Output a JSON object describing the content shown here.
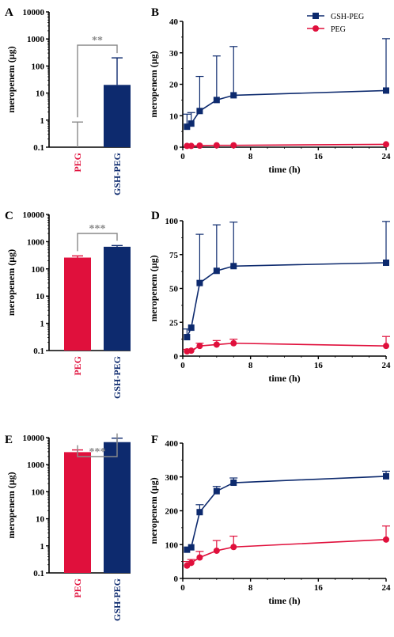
{
  "colors": {
    "PEG": "#e0103c",
    "GSH-PEG": "#0d2a6e",
    "bracket": "#8a8a8a",
    "axis": "#000000"
  },
  "chart_data": [
    {
      "panel": "A",
      "type": "bar",
      "scale": "log",
      "ylabel": "meropenem (µg)",
      "ylim": [
        0.1,
        10000
      ],
      "yticks": [
        "10000",
        "1000",
        "100",
        "10",
        "1",
        "0.1"
      ],
      "categories": [
        "PEG",
        "GSH-PEG"
      ],
      "values": [
        null,
        20
      ],
      "error_upper": [
        0.85,
        200
      ],
      "significance": "**"
    },
    {
      "panel": "B",
      "type": "line",
      "xlabel": "time (h)",
      "ylabel": "meropenem (µg)",
      "xlim": [
        0,
        24
      ],
      "xticks": [
        0,
        8,
        16,
        24
      ],
      "ylim": [
        0,
        40
      ],
      "yticks": [
        0,
        10,
        20,
        30,
        40
      ],
      "legend": "top-right",
      "series": [
        {
          "name": "GSH-PEG",
          "marker": "square",
          "x": [
            0.5,
            1,
            2,
            4,
            6,
            24
          ],
          "y": [
            6.5,
            7.5,
            11.5,
            15,
            16.5,
            18
          ],
          "err": [
            4,
            3.5,
            11,
            14,
            15.5,
            16.5
          ]
        },
        {
          "name": "PEG",
          "marker": "circle",
          "x": [
            0.5,
            1,
            2,
            4,
            6,
            24
          ],
          "y": [
            0.4,
            0.4,
            0.5,
            0.6,
            0.6,
            0.9
          ],
          "err": [
            0,
            0,
            0,
            0,
            0,
            0
          ]
        }
      ]
    },
    {
      "panel": "C",
      "type": "bar",
      "scale": "log",
      "ylabel": "meropenem (µg)",
      "ylim": [
        0.1,
        10000
      ],
      "yticks": [
        "10000",
        "1000",
        "100",
        "10",
        "1",
        "0.1"
      ],
      "categories": [
        "PEG",
        "GSH-PEG"
      ],
      "values": [
        260,
        650
      ],
      "error_upper": [
        300,
        720
      ],
      "significance": "***"
    },
    {
      "panel": "D",
      "type": "line",
      "xlabel": "time (h)",
      "ylabel": "meropenem (µg)",
      "xlim": [
        0,
        24
      ],
      "xticks": [
        0,
        8,
        16,
        24
      ],
      "ylim": [
        0,
        100
      ],
      "yticks": [
        0,
        25,
        50,
        75,
        100
      ],
      "series": [
        {
          "name": "GSH-PEG",
          "marker": "square",
          "x": [
            0.5,
            1,
            2,
            4,
            6,
            24
          ],
          "y": [
            14,
            21,
            54,
            63,
            66.5,
            69
          ],
          "err": [
            6,
            0,
            36,
            34,
            32.5,
            30.5
          ]
        },
        {
          "name": "PEG",
          "marker": "circle",
          "x": [
            0.5,
            1,
            2,
            4,
            6,
            24
          ],
          "y": [
            3.5,
            4,
            7.5,
            8.5,
            9.5,
            7.5
          ],
          "err": [
            1.5,
            1,
            2,
            3,
            3,
            7
          ]
        }
      ]
    },
    {
      "panel": "E",
      "type": "bar",
      "scale": "log",
      "ylabel": "meropenem (µg)",
      "ylim": [
        0.1,
        10000
      ],
      "yticks": [
        "10000",
        "1000",
        "100",
        "10",
        "1",
        "0.1"
      ],
      "categories": [
        "PEG",
        "GSH-PEG"
      ],
      "values": [
        2900,
        6800
      ],
      "error_upper": [
        3500,
        9500
      ],
      "significance": "***"
    },
    {
      "panel": "F",
      "type": "line",
      "xlabel": "time (h)",
      "ylabel": "meropenem (µg)",
      "xlim": [
        0,
        24
      ],
      "xticks": [
        0,
        8,
        16,
        24
      ],
      "ylim": [
        0,
        400
      ],
      "yticks": [
        0,
        100,
        200,
        300,
        400
      ],
      "series": [
        {
          "name": "GSH-PEG",
          "marker": "square",
          "x": [
            0.5,
            1,
            2,
            4,
            6,
            24
          ],
          "y": [
            85,
            92,
            196,
            258,
            283,
            302
          ],
          "err": [
            0,
            0,
            22,
            14,
            14,
            15
          ]
        },
        {
          "name": "PEG",
          "marker": "circle",
          "x": [
            0.5,
            1,
            2,
            4,
            6,
            24
          ],
          "y": [
            38,
            46,
            62,
            82,
            93,
            115
          ],
          "err": [
            12,
            10,
            18,
            30,
            32,
            40
          ]
        }
      ]
    }
  ]
}
